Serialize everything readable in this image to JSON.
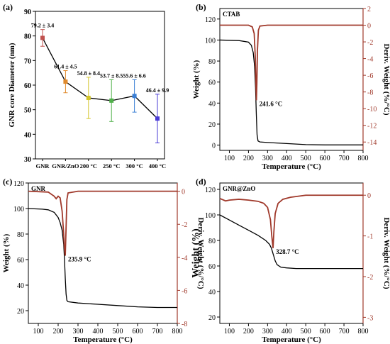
{
  "colors": {
    "axis": "#000000",
    "deriv": "#a0392b",
    "deriv_dark": "#8b2a1f",
    "weight": "#000000"
  },
  "chart_data": [
    {
      "panel": "a",
      "panel_label": "(a)",
      "type": "scatter",
      "ylabel": "GNR core Diameter (nm)",
      "ylim": [
        30,
        90
      ],
      "yticks": [
        "30",
        "40",
        "50",
        "60",
        "70",
        "80",
        "90"
      ],
      "categories": [
        "GNR",
        "GNR/ZnO",
        "200 °C",
        "250 °C",
        "300 °C",
        "400 °C"
      ],
      "values": [
        79.2,
        61.4,
        54.8,
        53.7,
        55.6,
        46.4
      ],
      "errors": [
        3.4,
        4.5,
        8.4,
        8.5,
        6.6,
        9.9
      ],
      "data_labels": [
        "79.2 ± 3.4",
        "61.4 ± 4.5",
        "54.8 ± 8.4",
        "53.7 ± 8.5",
        "55.6 ± 6.6",
        "46.4 ± 9.9"
      ],
      "point_colors": [
        "#c0504d",
        "#e08a2c",
        "#d4c52a",
        "#4fb04a",
        "#3a7fd5",
        "#4a3bd6"
      ]
    },
    {
      "panel": "b",
      "panel_label": "(b)",
      "type": "line",
      "title": "CTAB",
      "xlabel": "Temperature (°C)",
      "ylabel": "Weight (%)",
      "y2label": "Deriv. Weight (%/°C)",
      "xlim": [
        50,
        800
      ],
      "xticks": [
        "100",
        "200",
        "300",
        "400",
        "500",
        "600",
        "700",
        "800"
      ],
      "ylim": [
        -5,
        130
      ],
      "yticks": [
        "0",
        "20",
        "40",
        "60",
        "80",
        "100",
        "120"
      ],
      "y2lim": [
        -15,
        2
      ],
      "y2ticks": [
        "2",
        "0",
        "-2",
        "-4",
        "-6",
        "-8",
        "-10",
        "-12",
        "-14"
      ],
      "annotation": "241.6 °C",
      "series": [
        {
          "axis": "left",
          "x": [
            50,
            150,
            200,
            215,
            225,
            232,
            237,
            241,
            245,
            250,
            260,
            300,
            400,
            500,
            600,
            700,
            800
          ],
          "y": [
            100,
            99.5,
            98,
            95,
            88,
            75,
            55,
            30,
            10,
            4,
            3,
            2.5,
            1.5,
            0.5,
            0.2,
            0.2,
            0.2
          ]
        },
        {
          "axis": "right",
          "x": [
            50,
            200,
            220,
            230,
            236,
            239,
            241.6,
            244,
            247,
            252,
            260,
            300,
            500,
            800
          ],
          "y": [
            0,
            0,
            -0.2,
            -1,
            -4,
            -7,
            -9,
            -7,
            -3,
            -0.6,
            -0.1,
            0,
            0,
            0
          ]
        }
      ]
    },
    {
      "panel": "c",
      "panel_label": "(c)",
      "type": "line",
      "title": "GNR",
      "xlabel": "Temperature (°C)",
      "ylabel": "Weight (%)",
      "y2label": "Deriv. Weight (%/°C)",
      "xlim": [
        50,
        800
      ],
      "xticks": [
        "100",
        "200",
        "300",
        "400",
        "500",
        "600",
        "700",
        "800"
      ],
      "ylim": [
        10,
        120
      ],
      "yticks": [
        "20",
        "40",
        "60",
        "80",
        "100",
        "120"
      ],
      "y2lim": [
        -8,
        0.5
      ],
      "y2ticks": [
        "0",
        "-2",
        "-4",
        "-6",
        "-8"
      ],
      "annotation": "235.9 °C",
      "series": [
        {
          "axis": "left",
          "x": [
            50,
            120,
            150,
            180,
            200,
            210,
            220,
            228,
            232,
            236,
            240,
            244,
            250,
            300,
            400,
            500,
            600,
            700,
            800
          ],
          "y": [
            100,
            99.5,
            99,
            97,
            93,
            89,
            83,
            72,
            60,
            45,
            33,
            28,
            27,
            26,
            25,
            24,
            23,
            22.5,
            22.5
          ]
        },
        {
          "axis": "right",
          "x": [
            50,
            150,
            180,
            190,
            200,
            210,
            220,
            228,
            232,
            235.9,
            240,
            244,
            250,
            300,
            800
          ],
          "y": [
            0,
            -0.05,
            -0.3,
            -0.45,
            -0.3,
            -0.4,
            -1.2,
            -2.6,
            -3.5,
            -3.9,
            -2.2,
            -0.5,
            -0.1,
            0,
            0
          ]
        }
      ]
    },
    {
      "panel": "d",
      "panel_label": "(d)",
      "type": "line",
      "title": "GNR@ZnO",
      "xlabel": "Temperature (°C)",
      "ylabel": "Weight (%)",
      "y2label": "Deriv. Weight (%/°C)",
      "xlim": [
        50,
        800
      ],
      "xticks": [
        "100",
        "200",
        "300",
        "400",
        "500",
        "600",
        "700",
        "800"
      ],
      "ylim": [
        15,
        125
      ],
      "yticks": [
        "20",
        "40",
        "60",
        "80",
        "100",
        "120"
      ],
      "y2lim": [
        -3.15,
        0.3
      ],
      "y2ticks": [
        "0",
        "-1",
        "-2",
        "-3"
      ],
      "annotation": "328.7 °C",
      "series": [
        {
          "axis": "left",
          "x": [
            50,
            100,
            150,
            200,
            250,
            290,
            310,
            320,
            330,
            340,
            350,
            370,
            400,
            450,
            500,
            600,
            800
          ],
          "y": [
            100,
            96,
            92,
            88,
            84,
            80,
            77,
            74,
            69,
            64,
            61,
            59,
            58.5,
            58,
            58,
            58,
            58
          ]
        },
        {
          "axis": "right",
          "x": [
            50,
            80,
            100,
            150,
            200,
            250,
            280,
            300,
            315,
            322,
            328.7,
            333,
            340,
            355,
            380,
            420,
            500,
            800
          ],
          "y": [
            -0.08,
            -0.14,
            -0.12,
            -0.1,
            -0.12,
            -0.15,
            -0.2,
            -0.3,
            -0.6,
            -1,
            -1.3,
            -0.9,
            -0.45,
            -0.2,
            -0.1,
            -0.05,
            0,
            0
          ]
        }
      ]
    }
  ]
}
